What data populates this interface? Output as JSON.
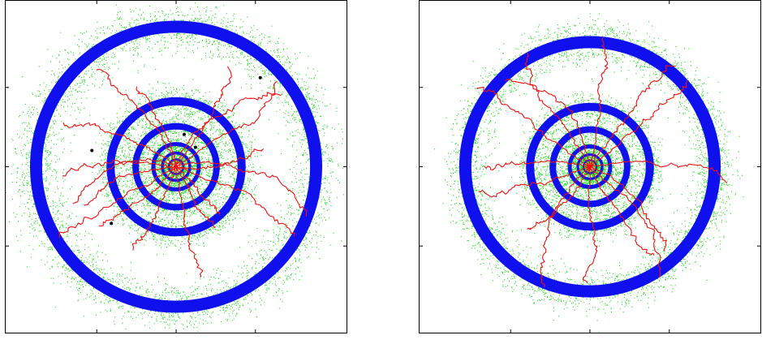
{
  "colors": {
    "background": "#ffffff",
    "axes": "#000000",
    "halo": "#22dd22",
    "ring": "#1010ee",
    "track": "#ee1111",
    "hit": "#000000"
  },
  "chart_data": [
    {
      "type": "scatter",
      "title": "",
      "xlabel": "",
      "ylabel": "",
      "grid": false,
      "legend": "none",
      "xlim": [
        -1,
        1
      ],
      "ylim": [
        -1,
        1
      ],
      "rings": [
        {
          "radius": 0.865,
          "width": 0.075,
          "halo_spread": 0.14
        },
        {
          "radius": 0.405,
          "width": 0.05,
          "halo_spread": 0.09
        },
        {
          "radius": 0.25,
          "width": 0.04,
          "halo_spread": 0.06
        },
        {
          "radius": 0.14,
          "width": 0.025,
          "halo_spread": 0.04
        },
        {
          "radius": 0.085,
          "width": 0.018,
          "halo_spread": 0.025
        },
        {
          "radius": 0.045,
          "width": 0.012,
          "halo_spread": 0.015
        }
      ],
      "tracks": [
        {
          "angle": 15,
          "length": 0.86
        },
        {
          "angle": 30,
          "length": 0.82
        },
        {
          "angle": 55,
          "length": 0.7
        },
        {
          "angle": 70,
          "length": 0.78
        },
        {
          "angle": 95,
          "length": 0.55
        },
        {
          "angle": 110,
          "length": 0.78
        },
        {
          "angle": 135,
          "length": 0.75
        },
        {
          "angle": 155,
          "length": 0.68
        },
        {
          "angle": 175,
          "length": 0.7
        },
        {
          "angle": 190,
          "length": 0.62
        },
        {
          "angle": 210,
          "length": 0.85
        },
        {
          "angle": 230,
          "length": 0.6
        },
        {
          "angle": 250,
          "length": 0.58
        },
        {
          "angle": 275,
          "length": 0.7
        },
        {
          "angle": 300,
          "length": 0.45
        },
        {
          "angle": 320,
          "length": 0.4
        },
        {
          "angle": 340,
          "length": 0.85
        },
        {
          "angle": 355,
          "length": 0.55
        }
      ],
      "hits": [
        {
          "x": 0.52,
          "y": 0.55
        },
        {
          "x": 0.05,
          "y": 0.2
        },
        {
          "x": -0.52,
          "y": 0.1
        },
        {
          "x": -0.4,
          "y": -0.35
        },
        {
          "x": 0.12,
          "y": 0.12
        }
      ]
    },
    {
      "type": "scatter",
      "title": "",
      "xlabel": "",
      "ylabel": "",
      "grid": false,
      "legend": "none",
      "xlim": [
        -1,
        1
      ],
      "ylim": [
        -1,
        1
      ],
      "rings": [
        {
          "radius": 0.77,
          "width": 0.075,
          "halo_spread": 0.12
        },
        {
          "radius": 0.37,
          "width": 0.05,
          "halo_spread": 0.08
        },
        {
          "radius": 0.23,
          "width": 0.04,
          "halo_spread": 0.06
        },
        {
          "radius": 0.125,
          "width": 0.025,
          "halo_spread": 0.04
        },
        {
          "radius": 0.075,
          "width": 0.016,
          "halo_spread": 0.025
        },
        {
          "radius": 0.04,
          "width": 0.01,
          "halo_spread": 0.015
        }
      ],
      "tracks": [
        {
          "angle": 10,
          "length": 0.85
        },
        {
          "angle": 35,
          "length": 0.8
        },
        {
          "angle": 58,
          "length": 0.82
        },
        {
          "angle": 78,
          "length": 0.8
        },
        {
          "angle": 100,
          "length": 0.75
        },
        {
          "angle": 125,
          "length": 0.8
        },
        {
          "angle": 150,
          "length": 0.85
        },
        {
          "angle": 170,
          "length": 0.65
        },
        {
          "angle": 200,
          "length": 0.7
        },
        {
          "angle": 220,
          "length": 0.8
        },
        {
          "angle": 245,
          "length": 0.55
        },
        {
          "angle": 270,
          "length": 0.72
        },
        {
          "angle": 295,
          "length": 0.68
        },
        {
          "angle": 318,
          "length": 0.8
        },
        {
          "angle": 340,
          "length": 0.7
        }
      ],
      "hits": []
    }
  ]
}
